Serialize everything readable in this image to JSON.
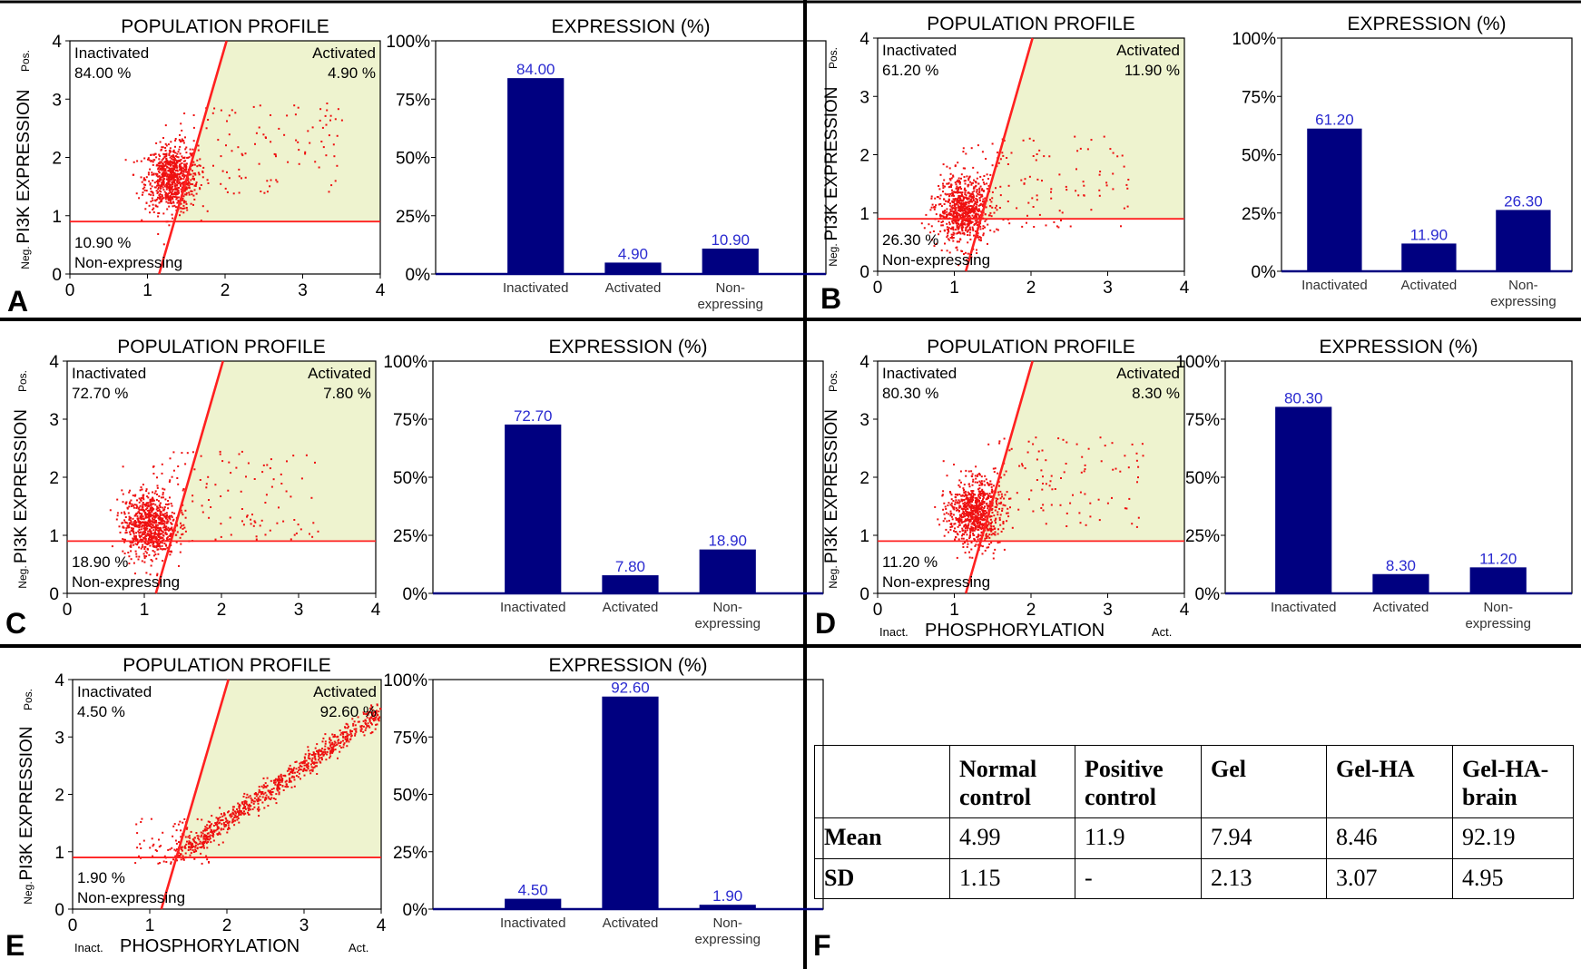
{
  "colors": {
    "bar": "#000080",
    "line": "#ff2020",
    "fill": "#eef3cf",
    "dot": "#ee1010",
    "label": "#2a2ad0",
    "panel_border": "#000000"
  },
  "labels": {
    "pop_title": "POPULATION PROFILE",
    "expr_title": "EXPRESSION (%)",
    "y_axis": "PI3K EXPRESSION",
    "y_pos": "Pos.",
    "y_neg": "Neg.",
    "x_axis": "PHOSPHORYLATION",
    "x_inact": "Inact.",
    "x_act": "Act.",
    "inactivated": "Inactivated",
    "activated": "Activated",
    "nonexpressing": "Non-expressing",
    "bar_cat_1": "Inactivated",
    "bar_cat_2": "Activated",
    "bar_cat_3a": "Non-",
    "bar_cat_3b": "expressing"
  },
  "chart_data": [
    {
      "panel": "A",
      "type": "bar",
      "title": "EXPRESSION (%)",
      "categories": [
        "Inactivated",
        "Activated",
        "Non-expressing"
      ],
      "values": [
        84.0,
        4.9,
        10.9
      ],
      "value_labels": [
        "84.00",
        "4.90",
        "10.90"
      ],
      "ylim": [
        0,
        100
      ],
      "yticks": [
        "0%",
        "25%",
        "50%",
        "75%",
        "100%"
      ],
      "scatter": {
        "title": "POPULATION PROFILE",
        "ylabel": "PI3K EXPRESSION",
        "xlim": [
          0,
          4
        ],
        "ylim": [
          0,
          4
        ],
        "inactivated_label": "84.00 %",
        "activated_label": "4.90 %",
        "nonexpressing_label": "10.90 %",
        "cluster": "round",
        "center": [
          1.3,
          1.65
        ]
      }
    },
    {
      "panel": "B",
      "type": "bar",
      "title": "EXPRESSION (%)",
      "categories": [
        "Inactivated",
        "Activated",
        "Non-expressing"
      ],
      "values": [
        61.2,
        11.9,
        26.3
      ],
      "value_labels": [
        "61.20",
        "11.90",
        "26.30"
      ],
      "ylim": [
        0,
        100
      ],
      "yticks": [
        "0%",
        "25%",
        "50%",
        "75%",
        "100%"
      ],
      "scatter": {
        "title": "POPULATION PROFILE",
        "ylabel": "PI3K EXPRESSION",
        "xlim": [
          0,
          4
        ],
        "ylim": [
          0,
          4
        ],
        "inactivated_label": "61.20 %",
        "activated_label": "11.90 %",
        "nonexpressing_label": "26.30 %",
        "cluster": "round",
        "center": [
          1.1,
          1.05
        ]
      }
    },
    {
      "panel": "C",
      "type": "bar",
      "title": "EXPRESSION (%)",
      "categories": [
        "Inactivated",
        "Activated",
        "Non-expressing"
      ],
      "values": [
        72.7,
        7.8,
        18.9
      ],
      "value_labels": [
        "72.70",
        "7.80",
        "18.90"
      ],
      "ylim": [
        0,
        100
      ],
      "yticks": [
        "0%",
        "25%",
        "50%",
        "75%",
        "100%"
      ],
      "scatter": {
        "title": "POPULATION PROFILE",
        "ylabel": "PI3K EXPRESSION",
        "xlim": [
          0,
          4
        ],
        "ylim": [
          0,
          4
        ],
        "inactivated_label": "72.70 %",
        "activated_label": "7.80 %",
        "nonexpressing_label": "18.90 %",
        "cluster": "round",
        "center": [
          1.05,
          1.2
        ]
      }
    },
    {
      "panel": "D",
      "type": "bar",
      "title": "EXPRESSION (%)",
      "categories": [
        "Inactivated",
        "Activated",
        "Non-expressing"
      ],
      "values": [
        80.3,
        8.3,
        11.2
      ],
      "value_labels": [
        "80.30",
        "8.30",
        "11.20"
      ],
      "ylim": [
        0,
        100
      ],
      "yticks": [
        "0%",
        "25%",
        "50%",
        "75%",
        "100%"
      ],
      "scatter": {
        "title": "POPULATION PROFILE",
        "ylabel": "PI3K EXPRESSION",
        "xlabel": "PHOSPHORYLATION",
        "xlim": [
          0,
          4
        ],
        "ylim": [
          0,
          4
        ],
        "inactivated_label": "80.30 %",
        "activated_label": "8.30 %",
        "nonexpressing_label": "11.20 %",
        "cluster": "round",
        "center": [
          1.25,
          1.4
        ]
      }
    },
    {
      "panel": "E",
      "type": "bar",
      "title": "EXPRESSION (%)",
      "categories": [
        "Inactivated",
        "Activated",
        "Non-expressing"
      ],
      "values": [
        4.5,
        92.6,
        1.9
      ],
      "value_labels": [
        "4.50",
        "92.60",
        "1.90"
      ],
      "ylim": [
        0,
        100
      ],
      "yticks": [
        "0%",
        "25%",
        "50%",
        "75%",
        "100%"
      ],
      "scatter": {
        "title": "POPULATION PROFILE",
        "ylabel": "PI3K EXPRESSION",
        "xlabel": "PHOSPHORYLATION",
        "xlim": [
          0,
          4
        ],
        "ylim": [
          0,
          4
        ],
        "inactivated_label": "4.50 %",
        "activated_label": "92.60 %",
        "nonexpressing_label": "1.90 %",
        "cluster": "diagonal",
        "center": [
          2.4,
          1.95
        ]
      }
    },
    {
      "panel": "F",
      "type": "table",
      "columns": [
        "",
        "Normal control",
        "Positive control",
        "Gel",
        "Gel-HA",
        "Gel-HA-brain"
      ],
      "rows": [
        {
          "label": "Mean",
          "values": [
            "4.99",
            "11.9",
            "7.94",
            "8.46",
            "92.19"
          ]
        },
        {
          "label": "SD",
          "values": [
            "1.15",
            "-",
            "2.13",
            "3.07",
            "4.95"
          ]
        }
      ]
    }
  ]
}
